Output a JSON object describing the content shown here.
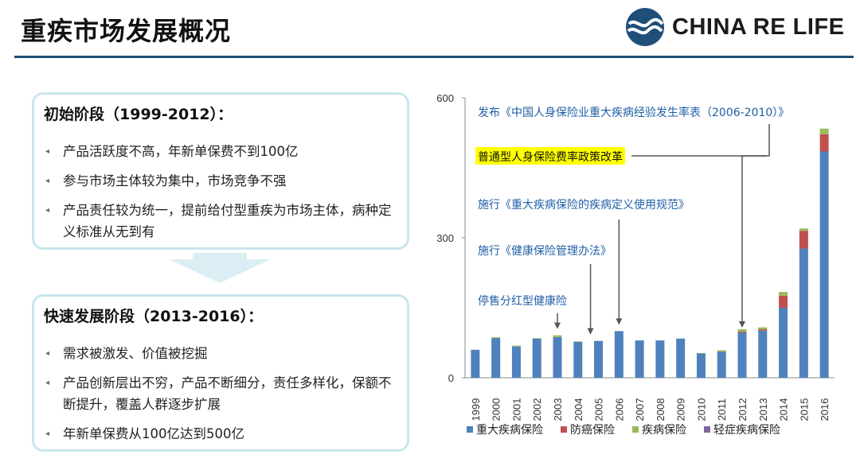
{
  "page": {
    "title": "重疾市场发展概况"
  },
  "logo": {
    "text": "CHINA RE LIFE",
    "icon": "wave-circle-icon"
  },
  "stage1": {
    "heading": "初始阶段（1999-2012）：",
    "bullets": [
      "产品活跃度不高，年新单保费不到100亿",
      "参与市场主体较为集中，市场竞争不强",
      "产品责任较为统一，提前给付型重疾为市场主体，病种定义标准从无到有"
    ]
  },
  "stage2": {
    "heading": "快速发展阶段（2013-2016）：",
    "bullets": [
      "需求被激发、价值被挖掘",
      "产品创新层出不穷，产品不断细分，责任多样化，保额不断提升，覆盖人群逐步扩展",
      "年新单保费从100亿达到500亿"
    ]
  },
  "chart_data": {
    "type": "bar",
    "stacked": true,
    "categories": [
      "1999",
      "2000",
      "2001",
      "2002",
      "2003",
      "2004",
      "2005",
      "2006",
      "2007",
      "2008",
      "2009",
      "2010",
      "2011",
      "2012",
      "2013",
      "2014",
      "2015",
      "2016"
    ],
    "series": [
      {
        "name": "重大疾病保险",
        "color": "#4f81bd",
        "values": [
          60,
          85,
          67,
          84,
          87,
          77,
          79,
          100,
          80,
          80,
          84,
          52,
          56,
          97,
          101,
          150,
          277,
          485
        ]
      },
      {
        "name": "防癌保险",
        "color": "#c0504d",
        "values": [
          0,
          0,
          0,
          0,
          0,
          0,
          0,
          0,
          0,
          0,
          0,
          0,
          0,
          2,
          3,
          26,
          38,
          37
        ]
      },
      {
        "name": "疾病保险",
        "color": "#9bbb59",
        "values": [
          0,
          2,
          2,
          1,
          4,
          1,
          0,
          0,
          0,
          0,
          0,
          1,
          3,
          5,
          4,
          8,
          5,
          12
        ]
      },
      {
        "name": "轻症疾病保险",
        "color": "#8064a2",
        "values": [
          0,
          0,
          0,
          0,
          0,
          0,
          0,
          0,
          0,
          0,
          0,
          0,
          0,
          0,
          0,
          0,
          0,
          0
        ]
      }
    ],
    "ylim": [
      0,
      600
    ],
    "yticks": [
      0,
      300,
      600
    ],
    "legend_position": "bottom",
    "annotations": [
      {
        "text": "发布《中国人身保险业重大疾病经验发生率表（2006-2010）》",
        "category": "2012",
        "highlight": false
      },
      {
        "text": "普通型人身保险费率政策改革",
        "category": "2012",
        "highlight": true
      },
      {
        "text": "施行《重大疾病保险的疾病定义使用规范》",
        "category": "2006",
        "highlight": false
      },
      {
        "text": "施行《健康保险管理办法》",
        "category": "2005",
        "highlight": false
      },
      {
        "text": "停售分红型健康险",
        "category": "2003",
        "highlight": false
      }
    ],
    "colors": {
      "annotation_text": "#1f5fa6",
      "highlight_bg": "#ffff00",
      "axis": "#888888"
    }
  }
}
